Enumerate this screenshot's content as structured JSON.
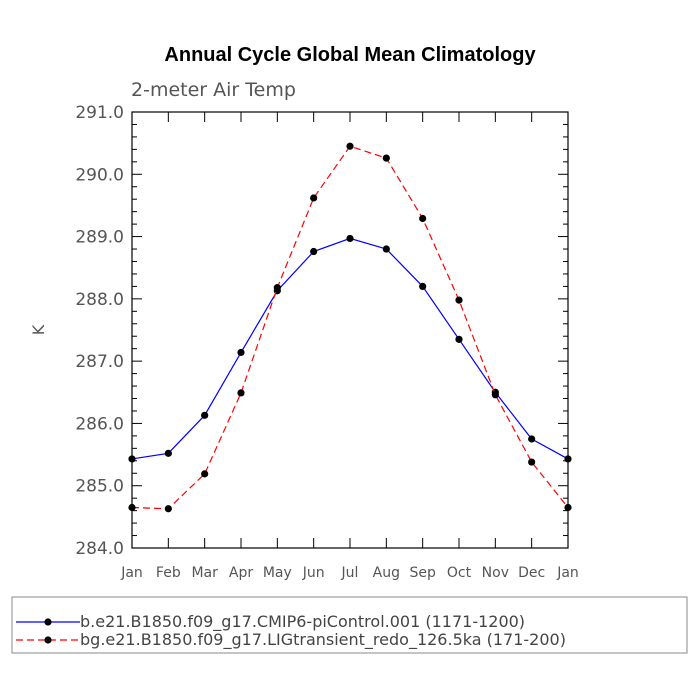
{
  "chart_data": {
    "type": "line",
    "title": "Annual Cycle Global Mean Climatology",
    "subtitle": "2-meter Air Temp",
    "xlabel": "",
    "ylabel": "K",
    "categories": [
      "Jan",
      "Feb",
      "Mar",
      "Apr",
      "May",
      "Jun",
      "Jul",
      "Aug",
      "Sep",
      "Oct",
      "Nov",
      "Dec",
      "Jan"
    ],
    "ylim": [
      284.0,
      291.0
    ],
    "yticks": [
      "284.0",
      "285.0",
      "286.0",
      "287.0",
      "288.0",
      "289.0",
      "290.0",
      "291.0"
    ],
    "series": [
      {
        "name": "b.e21.B1850.f09_g17.CMIP6-piControl.001 (1171-1200)",
        "color": "#0000ff",
        "dash": "solid",
        "values": [
          285.43,
          285.52,
          286.13,
          287.14,
          288.13,
          288.76,
          288.97,
          288.8,
          288.2,
          287.35,
          286.5,
          285.75,
          285.43
        ]
      },
      {
        "name": "bg.e21.B1850.f09_g17.LIGtransient_redo_126.5ka (171-200)",
        "color": "#ff0000",
        "dash": "dashed",
        "values": [
          284.65,
          284.63,
          285.19,
          286.49,
          288.18,
          289.62,
          290.45,
          290.26,
          289.29,
          287.98,
          286.46,
          285.38,
          284.65
        ]
      }
    ],
    "grid": false,
    "legend_position": "bottom"
  }
}
